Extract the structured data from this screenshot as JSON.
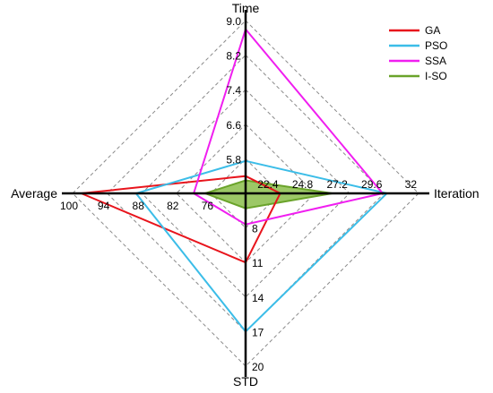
{
  "chart_data": {
    "type": "radar",
    "axes": [
      {
        "name": "Time",
        "direction": "up",
        "ticks": [
          "5.8",
          "6.6",
          "7.4",
          "8.2",
          "9.0"
        ],
        "min": 5.0,
        "max": 9.0
      },
      {
        "name": "Iteration",
        "direction": "right",
        "ticks": [
          "22.4",
          "24.8",
          "27.2",
          "29.6",
          "32"
        ],
        "min": 20.0,
        "max": 32.0
      },
      {
        "name": "STD",
        "direction": "down",
        "ticks": [
          "8",
          "11",
          "14",
          "17",
          "20"
        ],
        "min": 5.0,
        "max": 20.0
      },
      {
        "name": "Average",
        "direction": "left",
        "ticks": [
          "76",
          "82",
          "88",
          "94",
          "100"
        ],
        "min": 70.0,
        "max": 100.0
      }
    ],
    "series": [
      {
        "name": "GA",
        "color": "#e8141c",
        "fill": "none",
        "values": [
          5.4,
          22.4,
          11.0,
          98.5
        ]
      },
      {
        "name": "PSO",
        "color": "#3bbde8",
        "fill": "none",
        "values": [
          5.75,
          29.8,
          17.0,
          89.0
        ]
      },
      {
        "name": "SSA",
        "color": "#f01ef0",
        "fill": "none",
        "values": [
          8.8,
          29.5,
          7.7,
          79.0
        ]
      },
      {
        "name": "I-SO",
        "color": "#6aa32a",
        "fill": "#9cc866",
        "values": [
          5.3,
          26.0,
          6.3,
          77.0
        ]
      }
    ],
    "legend_position": "top-right",
    "grid": "dashed concentric diamonds"
  }
}
